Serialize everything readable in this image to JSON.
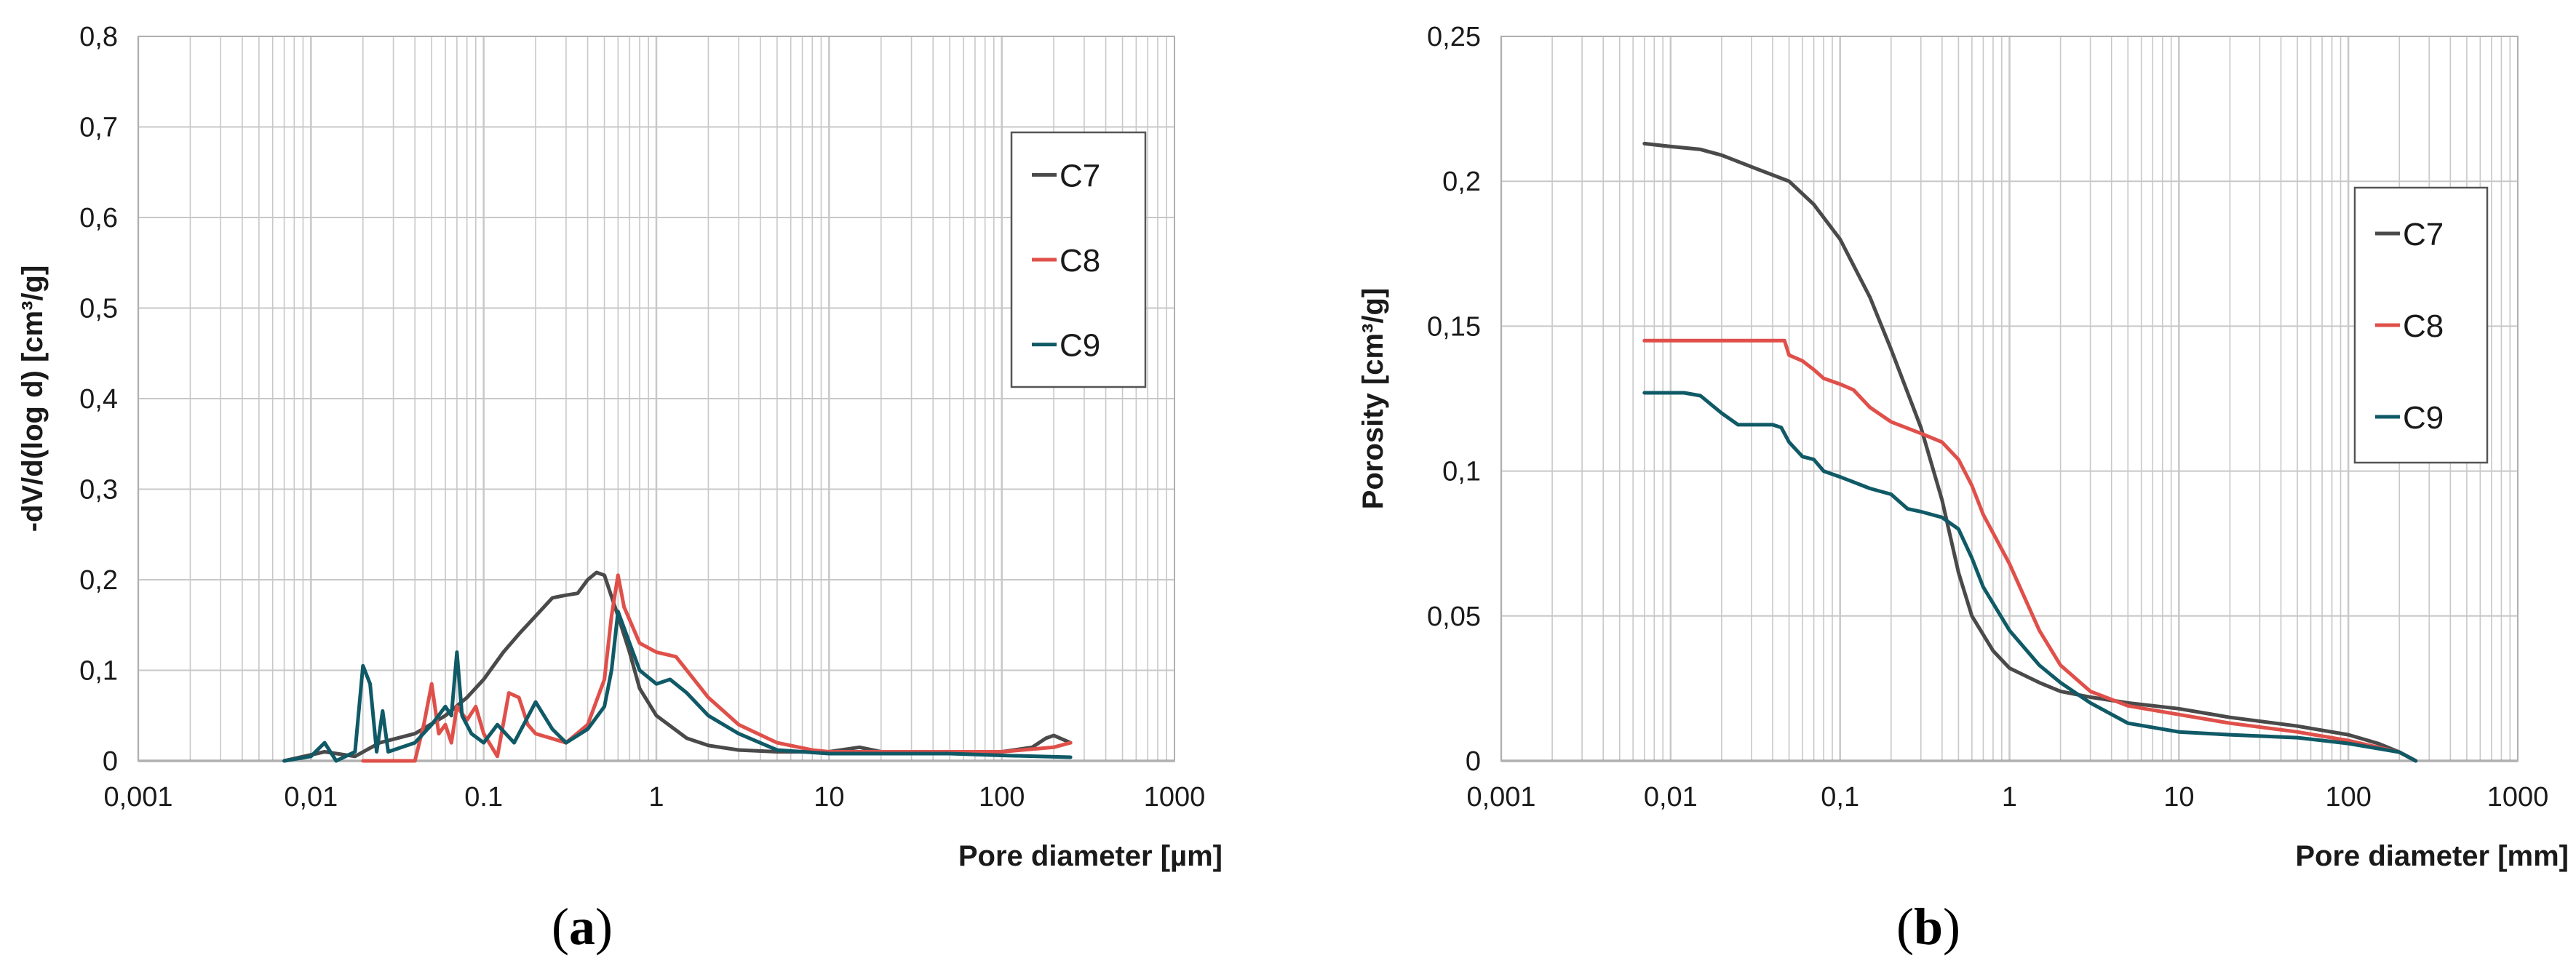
{
  "colors": {
    "C7": "#4a4a4a",
    "C8": "#e0504a",
    "C9": "#0f5a66",
    "grid": "#c8c8c8",
    "axis": "#8a8a8a"
  },
  "chart_data": [
    {
      "type": "line",
      "panel_caption": "a",
      "ylabel": "-dV/d(log d) [cm³/g]",
      "xlabel": "Pore diameter [µm]",
      "xscale": "log",
      "xlim": [
        0.001,
        1000
      ],
      "ylim": [
        0,
        0.8
      ],
      "xticks": [
        "0,001",
        "0,01",
        "0.1",
        "1",
        "10",
        "100",
        "1000"
      ],
      "yticks": [
        "0",
        "0,1",
        "0,2",
        "0,3",
        "0,4",
        "0,5",
        "0,6",
        "0,7",
        "0,8"
      ],
      "legend": [
        "C7",
        "C8",
        "C9"
      ],
      "legend_position": "top-right",
      "series": [
        {
          "name": "C7",
          "points": [
            [
              0.007,
              0
            ],
            [
              0.012,
              0.01
            ],
            [
              0.018,
              0.005
            ],
            [
              0.025,
              0.02
            ],
            [
              0.04,
              0.03
            ],
            [
              0.06,
              0.05
            ],
            [
              0.08,
              0.07
            ],
            [
              0.1,
              0.09
            ],
            [
              0.13,
              0.12
            ],
            [
              0.16,
              0.14
            ],
            [
              0.2,
              0.16
            ],
            [
              0.25,
              0.18
            ],
            [
              0.3,
              0.183
            ],
            [
              0.35,
              0.185
            ],
            [
              0.4,
              0.2
            ],
            [
              0.45,
              0.208
            ],
            [
              0.5,
              0.205
            ],
            [
              0.6,
              0.16
            ],
            [
              0.7,
              0.12
            ],
            [
              0.8,
              0.08
            ],
            [
              1,
              0.05
            ],
            [
              1.5,
              0.025
            ],
            [
              2,
              0.017
            ],
            [
              3,
              0.012
            ],
            [
              5,
              0.01
            ],
            [
              10,
              0.01
            ],
            [
              15,
              0.015
            ],
            [
              20,
              0.01
            ],
            [
              50,
              0.01
            ],
            [
              100,
              0.01
            ],
            [
              150,
              0.015
            ],
            [
              180,
              0.025
            ],
            [
              200,
              0.028
            ],
            [
              250,
              0.02
            ]
          ]
        },
        {
          "name": "C8",
          "points": [
            [
              0.02,
              0
            ],
            [
              0.04,
              0
            ],
            [
              0.045,
              0.04
            ],
            [
              0.05,
              0.085
            ],
            [
              0.055,
              0.03
            ],
            [
              0.06,
              0.04
            ],
            [
              0.065,
              0.02
            ],
            [
              0.07,
              0.06
            ],
            [
              0.08,
              0.045
            ],
            [
              0.09,
              0.06
            ],
            [
              0.1,
              0.03
            ],
            [
              0.12,
              0.005
            ],
            [
              0.14,
              0.075
            ],
            [
              0.16,
              0.07
            ],
            [
              0.18,
              0.04
            ],
            [
              0.2,
              0.03
            ],
            [
              0.3,
              0.02
            ],
            [
              0.4,
              0.04
            ],
            [
              0.5,
              0.09
            ],
            [
              0.55,
              0.16
            ],
            [
              0.6,
              0.205
            ],
            [
              0.65,
              0.17
            ],
            [
              0.8,
              0.13
            ],
            [
              1,
              0.12
            ],
            [
              1.3,
              0.115
            ],
            [
              2,
              0.07
            ],
            [
              3,
              0.04
            ],
            [
              5,
              0.02
            ],
            [
              8,
              0.012
            ],
            [
              10,
              0.01
            ],
            [
              20,
              0.01
            ],
            [
              50,
              0.01
            ],
            [
              100,
              0.01
            ],
            [
              200,
              0.015
            ],
            [
              250,
              0.02
            ]
          ]
        },
        {
          "name": "C9",
          "points": [
            [
              0.007,
              0
            ],
            [
              0.01,
              0.005
            ],
            [
              0.012,
              0.02
            ],
            [
              0.014,
              0
            ],
            [
              0.018,
              0.01
            ],
            [
              0.02,
              0.105
            ],
            [
              0.022,
              0.085
            ],
            [
              0.024,
              0.01
            ],
            [
              0.026,
              0.055
            ],
            [
              0.028,
              0.01
            ],
            [
              0.04,
              0.02
            ],
            [
              0.05,
              0.04
            ],
            [
              0.06,
              0.06
            ],
            [
              0.065,
              0.05
            ],
            [
              0.07,
              0.12
            ],
            [
              0.075,
              0.05
            ],
            [
              0.085,
              0.03
            ],
            [
              0.1,
              0.02
            ],
            [
              0.12,
              0.04
            ],
            [
              0.15,
              0.02
            ],
            [
              0.2,
              0.065
            ],
            [
              0.25,
              0.035
            ],
            [
              0.3,
              0.02
            ],
            [
              0.4,
              0.035
            ],
            [
              0.5,
              0.06
            ],
            [
              0.55,
              0.1
            ],
            [
              0.6,
              0.165
            ],
            [
              0.7,
              0.13
            ],
            [
              0.8,
              0.1
            ],
            [
              1,
              0.085
            ],
            [
              1.2,
              0.09
            ],
            [
              1.5,
              0.075
            ],
            [
              2,
              0.05
            ],
            [
              3,
              0.03
            ],
            [
              5,
              0.012
            ],
            [
              10,
              0.008
            ],
            [
              50,
              0.008
            ],
            [
              100,
              0.006
            ],
            [
              250,
              0.004
            ]
          ]
        }
      ]
    },
    {
      "type": "line",
      "panel_caption": "b",
      "ylabel": "Porosity [cm³/g]",
      "xlabel": "Pore diameter [mm]",
      "xscale": "log",
      "xlim": [
        0.001,
        1000
      ],
      "ylim": [
        0,
        0.25
      ],
      "xticks": [
        "0,001",
        "0,01",
        "0,1",
        "1",
        "10",
        "100",
        "1000"
      ],
      "yticks": [
        "0",
        "0,05",
        "0,1",
        "0,15",
        "0,2",
        "0,25"
      ],
      "legend": [
        "C7",
        "C8",
        "C9"
      ],
      "legend_position": "right",
      "series": [
        {
          "name": "C7",
          "points": [
            [
              0.007,
              0.213
            ],
            [
              0.01,
              0.212
            ],
            [
              0.015,
              0.211
            ],
            [
              0.02,
              0.209
            ],
            [
              0.03,
              0.205
            ],
            [
              0.05,
              0.2
            ],
            [
              0.07,
              0.192
            ],
            [
              0.1,
              0.18
            ],
            [
              0.15,
              0.16
            ],
            [
              0.2,
              0.142
            ],
            [
              0.3,
              0.115
            ],
            [
              0.4,
              0.09
            ],
            [
              0.5,
              0.065
            ],
            [
              0.6,
              0.05
            ],
            [
              0.8,
              0.038
            ],
            [
              1,
              0.032
            ],
            [
              1.5,
              0.027
            ],
            [
              2,
              0.024
            ],
            [
              3,
              0.022
            ],
            [
              5,
              0.02
            ],
            [
              10,
              0.018
            ],
            [
              20,
              0.015
            ],
            [
              50,
              0.012
            ],
            [
              100,
              0.009
            ],
            [
              150,
              0.006
            ],
            [
              200,
              0.003
            ],
            [
              250,
              0
            ]
          ]
        },
        {
          "name": "C8",
          "points": [
            [
              0.007,
              0.145
            ],
            [
              0.02,
              0.145
            ],
            [
              0.047,
              0.145
            ],
            [
              0.05,
              0.14
            ],
            [
              0.06,
              0.138
            ],
            [
              0.07,
              0.135
            ],
            [
              0.08,
              0.132
            ],
            [
              0.1,
              0.13
            ],
            [
              0.12,
              0.128
            ],
            [
              0.15,
              0.122
            ],
            [
              0.2,
              0.117
            ],
            [
              0.3,
              0.113
            ],
            [
              0.4,
              0.11
            ],
            [
              0.5,
              0.104
            ],
            [
              0.6,
              0.095
            ],
            [
              0.7,
              0.085
            ],
            [
              1,
              0.068
            ],
            [
              1.5,
              0.045
            ],
            [
              2,
              0.033
            ],
            [
              3,
              0.024
            ],
            [
              5,
              0.019
            ],
            [
              10,
              0.016
            ],
            [
              20,
              0.013
            ],
            [
              50,
              0.01
            ],
            [
              100,
              0.007
            ],
            [
              200,
              0.003
            ],
            [
              250,
              0
            ]
          ]
        },
        {
          "name": "C9",
          "points": [
            [
              0.007,
              0.127
            ],
            [
              0.012,
              0.127
            ],
            [
              0.015,
              0.126
            ],
            [
              0.02,
              0.12
            ],
            [
              0.025,
              0.116
            ],
            [
              0.04,
              0.116
            ],
            [
              0.045,
              0.115
            ],
            [
              0.05,
              0.11
            ],
            [
              0.06,
              0.105
            ],
            [
              0.07,
              0.104
            ],
            [
              0.08,
              0.1
            ],
            [
              0.1,
              0.098
            ],
            [
              0.15,
              0.094
            ],
            [
              0.2,
              0.092
            ],
            [
              0.25,
              0.087
            ],
            [
              0.3,
              0.086
            ],
            [
              0.4,
              0.084
            ],
            [
              0.5,
              0.08
            ],
            [
              0.6,
              0.07
            ],
            [
              0.7,
              0.06
            ],
            [
              1,
              0.045
            ],
            [
              1.5,
              0.033
            ],
            [
              2,
              0.027
            ],
            [
              3,
              0.02
            ],
            [
              5,
              0.013
            ],
            [
              10,
              0.01
            ],
            [
              20,
              0.009
            ],
            [
              50,
              0.008
            ],
            [
              100,
              0.006
            ],
            [
              200,
              0.003
            ],
            [
              250,
              0
            ]
          ]
        }
      ]
    }
  ]
}
